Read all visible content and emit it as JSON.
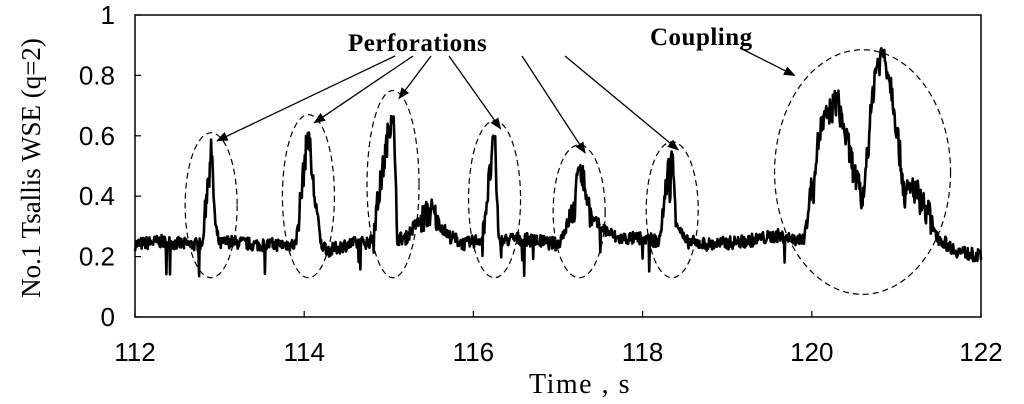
{
  "chart_data": {
    "type": "line",
    "xlabel": "Time , s",
    "ylabel": "No.1 Tsallis WSE (q=2)",
    "xlim": [
      112,
      122
    ],
    "ylim": [
      0,
      1
    ],
    "x_ticks": [
      "112",
      "114",
      "116",
      "118",
      "120",
      "122"
    ],
    "y_ticks": [
      "0",
      "0.2",
      "0.4",
      "0.6",
      "0.8",
      "1"
    ],
    "grid": false,
    "series_color": "#000000",
    "baseline": 0.24,
    "x": [
      112.0,
      112.3,
      112.6,
      112.8,
      112.85,
      112.9,
      112.95,
      113.0,
      113.1,
      113.4,
      113.7,
      113.9,
      114.0,
      114.05,
      114.1,
      114.2,
      114.3,
      114.5,
      114.8,
      115.0,
      115.05,
      115.1,
      115.2,
      115.3,
      115.5,
      115.7,
      115.9,
      116.1,
      116.2,
      116.25,
      116.3,
      116.5,
      116.8,
      117.0,
      117.2,
      117.25,
      117.4,
      117.7,
      118.0,
      118.2,
      118.3,
      118.35,
      118.4,
      118.5,
      118.8,
      119.2,
      119.6,
      119.9,
      120.1,
      120.3,
      120.5,
      120.6,
      120.75,
      120.85,
      120.95,
      121.1,
      121.2,
      121.35,
      121.5,
      121.7,
      122.0
    ],
    "y": [
      0.24,
      0.25,
      0.24,
      0.24,
      0.42,
      0.56,
      0.3,
      0.24,
      0.25,
      0.24,
      0.24,
      0.24,
      0.5,
      0.62,
      0.45,
      0.24,
      0.22,
      0.24,
      0.25,
      0.62,
      0.7,
      0.26,
      0.26,
      0.3,
      0.35,
      0.27,
      0.24,
      0.26,
      0.48,
      0.6,
      0.25,
      0.26,
      0.25,
      0.24,
      0.36,
      0.52,
      0.32,
      0.26,
      0.26,
      0.25,
      0.48,
      0.53,
      0.32,
      0.25,
      0.24,
      0.25,
      0.27,
      0.25,
      0.62,
      0.72,
      0.48,
      0.38,
      0.82,
      0.88,
      0.75,
      0.4,
      0.43,
      0.36,
      0.26,
      0.22,
      0.2
    ],
    "annotations": [
      {
        "text": "Perforations",
        "targets_x": [
          112.9,
          114.05,
          115.05,
          116.25,
          117.25,
          118.35
        ]
      },
      {
        "text": "Coupling",
        "targets_x": [
          120.6
        ]
      }
    ]
  }
}
